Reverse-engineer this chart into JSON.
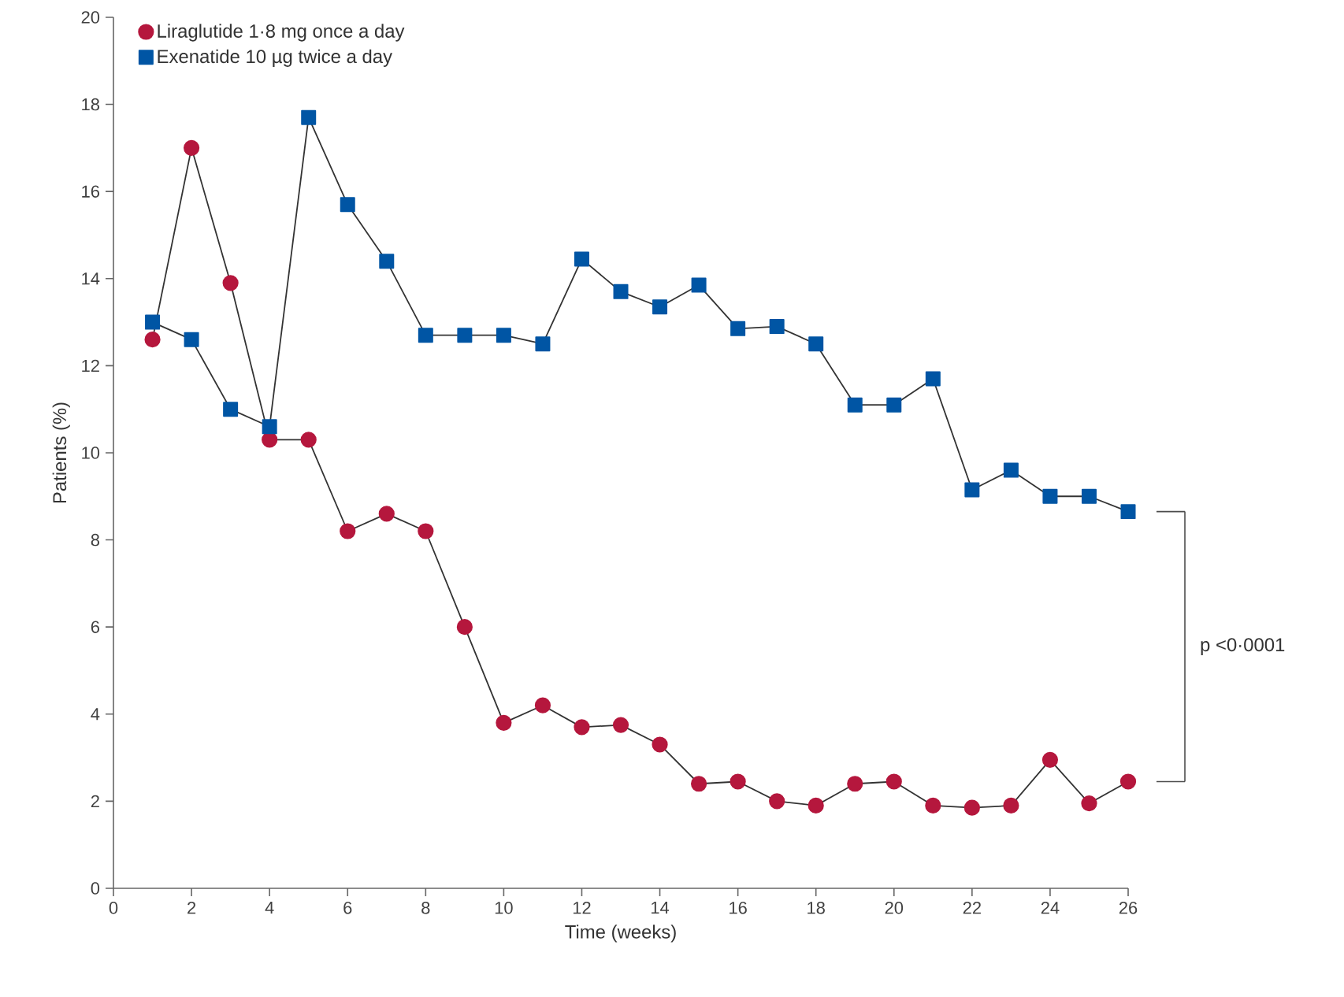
{
  "chart_data": {
    "type": "line",
    "xlabel": "Time (weeks)",
    "ylabel": "Patients (%)",
    "x": [
      1,
      2,
      3,
      4,
      5,
      6,
      7,
      8,
      9,
      10,
      11,
      12,
      13,
      14,
      15,
      16,
      17,
      18,
      19,
      20,
      21,
      22,
      23,
      24,
      25,
      26
    ],
    "series": [
      {
        "name": "Liraglutide 1·8 mg once a day",
        "color": "#b5173d",
        "marker": "circle",
        "values": [
          12.6,
          17.0,
          13.9,
          10.3,
          10.3,
          8.2,
          8.6,
          8.2,
          6.0,
          3.8,
          4.2,
          3.7,
          3.75,
          3.3,
          2.4,
          2.45,
          2.0,
          1.9,
          2.4,
          2.45,
          1.9,
          1.85,
          1.9,
          2.95,
          1.95,
          2.45
        ]
      },
      {
        "name": "Exenatide 10 µg twice a day",
        "color": "#0055a4",
        "marker": "square",
        "values": [
          13.0,
          12.6,
          11.0,
          10.6,
          17.7,
          15.7,
          14.4,
          12.7,
          12.7,
          12.7,
          12.5,
          14.45,
          13.7,
          13.35,
          13.85,
          12.85,
          12.9,
          12.5,
          11.1,
          11.1,
          11.7,
          9.15,
          9.6,
          9.0,
          9.0,
          8.65
        ]
      }
    ],
    "xlim": [
      0,
      26
    ],
    "xticks": [
      0,
      2,
      4,
      6,
      8,
      10,
      12,
      14,
      16,
      18,
      20,
      22,
      24,
      26
    ],
    "ylim": [
      0,
      20
    ],
    "yticks": [
      0,
      2,
      4,
      6,
      8,
      10,
      12,
      14,
      16,
      18,
      20
    ],
    "grid": false,
    "legend": "top left",
    "line_style": "solid",
    "annotations": [
      "p <0·0001"
    ]
  }
}
